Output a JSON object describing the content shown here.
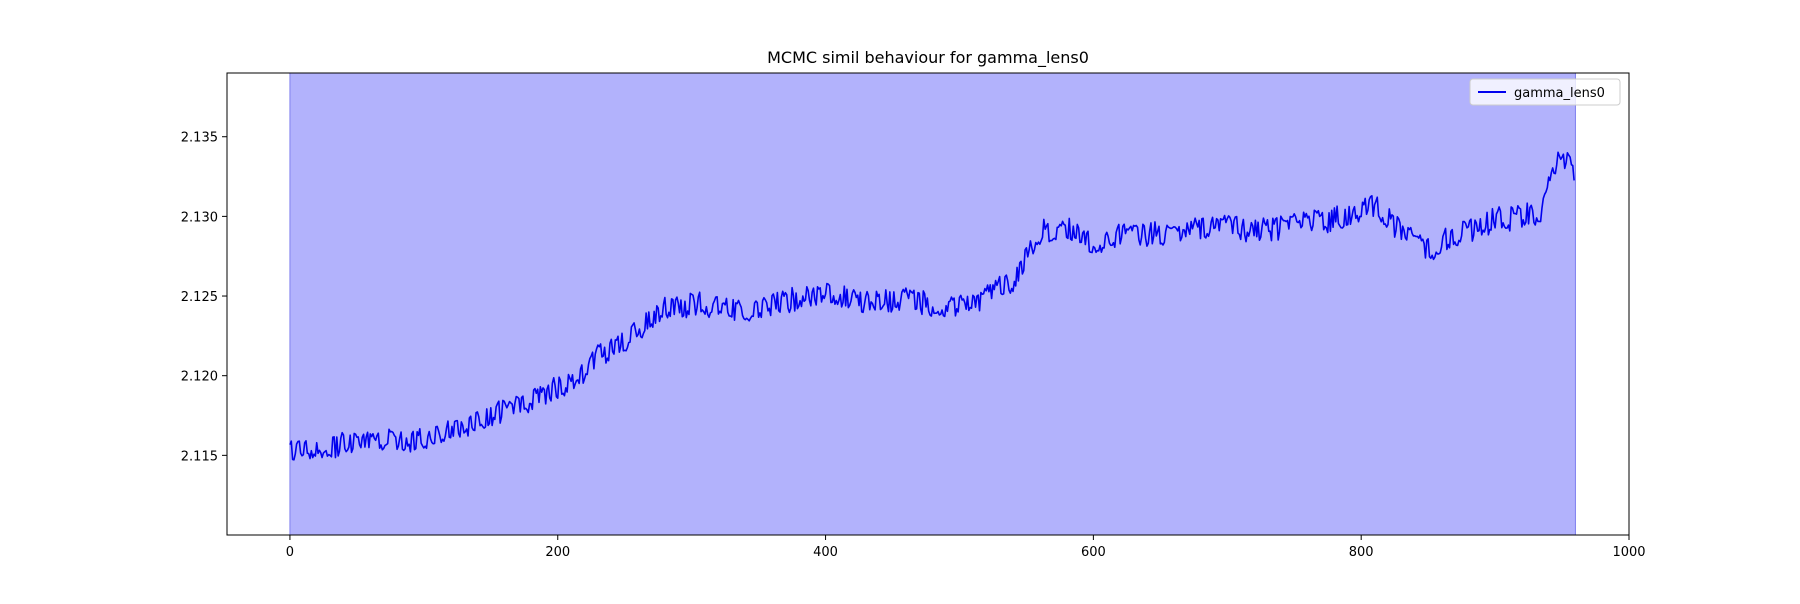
{
  "chart_data": {
    "type": "line",
    "title": "MCMC simil behaviour for gamma_lens0",
    "xlabel": "",
    "ylabel": "",
    "xlim": [
      -47,
      1000
    ],
    "ylim": [
      2.11,
      2.139
    ],
    "x_ticks": [
      0,
      200,
      400,
      600,
      800,
      1000
    ],
    "x_tick_labels": [
      "0",
      "200",
      "400",
      "600",
      "800",
      "1000"
    ],
    "y_ticks": [
      2.115,
      2.12,
      2.125,
      2.13,
      2.135
    ],
    "y_tick_labels": [
      "2.115",
      "2.120",
      "2.125",
      "2.130",
      "2.135"
    ],
    "grid": false,
    "legend_position": "top-right",
    "shaded_region": {
      "x_start": 0,
      "x_end": 960,
      "color": "#b2b2fc",
      "edge_color": "#7f7fef"
    },
    "series": [
      {
        "name": "gamma_lens0",
        "color": "#0000ee",
        "n_points": 960,
        "x_start": 0,
        "x_step": 1,
        "trend_x": [
          0,
          50,
          100,
          130,
          160,
          190,
          210,
          230,
          260,
          280,
          310,
          340,
          370,
          400,
          430,
          460,
          490,
          510,
          540,
          560,
          580,
          600,
          630,
          660,
          690,
          720,
          750,
          790,
          810,
          830,
          850,
          870,
          900,
          920,
          935,
          945,
          955,
          959
        ],
        "trend_y": [
          2.1153,
          2.1158,
          2.116,
          2.1168,
          2.1178,
          2.1188,
          2.1195,
          2.1212,
          2.1228,
          2.1242,
          2.1245,
          2.124,
          2.1247,
          2.1252,
          2.1247,
          2.1248,
          2.1243,
          2.1245,
          2.126,
          2.129,
          2.1292,
          2.1283,
          2.129,
          2.1288,
          2.1295,
          2.129,
          2.1295,
          2.13,
          2.1308,
          2.129,
          2.1278,
          2.1288,
          2.1298,
          2.13,
          2.1302,
          2.1335,
          2.1335,
          2.1326
        ],
        "noise_amplitude": 0.0007
      }
    ]
  }
}
